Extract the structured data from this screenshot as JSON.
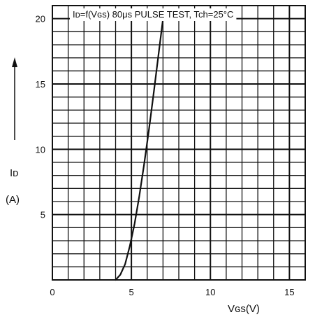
{
  "chart_data": {
    "type": "line",
    "title": "Iᴅ=f(Vɢs) 80μs PULSE TEST, Tch=25°C",
    "xlabel": "Vɢs(V)",
    "ylabel": "Iᴅ",
    "ylabel_unit": "(A)",
    "xlim": [
      0,
      16
    ],
    "ylim": [
      0,
      21
    ],
    "x_ticks": [
      0,
      5,
      10,
      15
    ],
    "x_tick_labels": [
      "0",
      "5",
      "10",
      "15"
    ],
    "y_ticks": [
      5,
      10,
      15,
      20
    ],
    "y_tick_labels": [
      "5",
      "10",
      "15",
      "20"
    ],
    "grid": true,
    "series": [
      {
        "x": [
          4.0,
          4.3,
          4.6,
          4.9,
          5.2,
          5.5,
          5.8,
          6.1,
          6.4,
          6.7,
          7.0
        ],
        "y": [
          0.0,
          0.4,
          1.2,
          2.6,
          4.3,
          6.4,
          8.8,
          11.4,
          14.2,
          17.1,
          20.0
        ],
        "color": "#111111"
      }
    ]
  }
}
